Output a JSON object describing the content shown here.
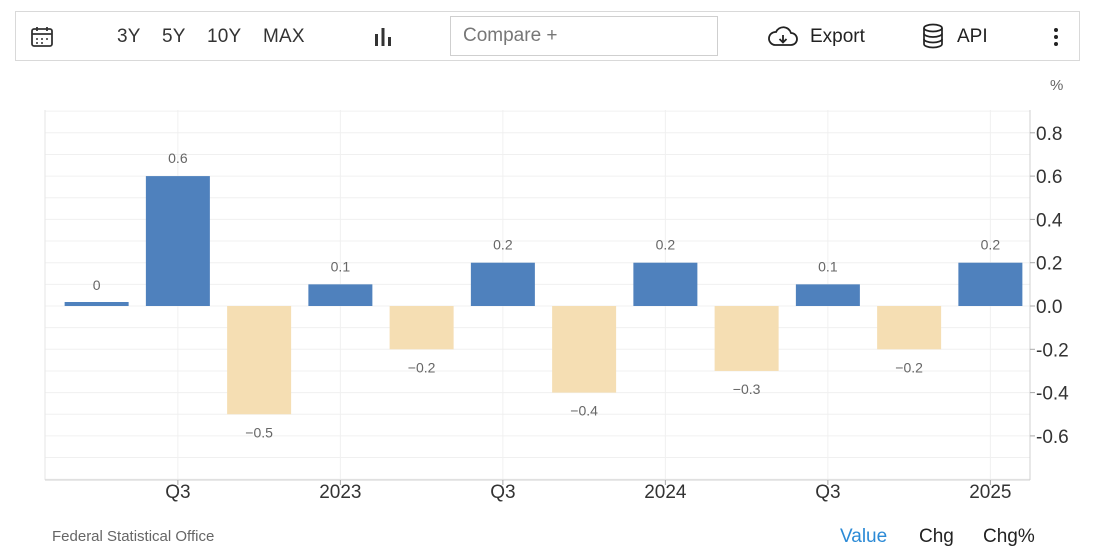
{
  "toolbar": {
    "calendar_icon": "calendar-icon",
    "ranges": [
      "3Y",
      "5Y",
      "10Y",
      "MAX"
    ],
    "chart_type_icon": "bar-chart-icon",
    "compare_placeholder": "Compare +",
    "export_label": "Export",
    "export_icon": "cloud-download-icon",
    "api_label": "API",
    "api_icon": "database-icon",
    "more_icon": "more-vertical-icon"
  },
  "unit_label": "%",
  "source": "Federal Statistical Office",
  "view_options": {
    "value": "Value",
    "chg": "Chg",
    "chg_pct": "Chg%",
    "active": "Value"
  },
  "colors": {
    "positive": "#4f81bd",
    "negative": "#f5deb3",
    "active_view": "#2b8ad6"
  },
  "chart_data": {
    "type": "bar",
    "categories": [
      "",
      "Q3",
      "",
      "2023",
      "",
      "Q3",
      "",
      "2024",
      "",
      "Q3",
      "",
      "2025"
    ],
    "values": [
      0,
      0.6,
      -0.5,
      0.1,
      -0.2,
      0.2,
      -0.4,
      0.2,
      -0.3,
      0.1,
      -0.2,
      0.2
    ],
    "value_labels": [
      "0",
      "0.6",
      "−0.5",
      "0.1",
      "−0.2",
      "0.2",
      "−0.4",
      "0.2",
      "−0.3",
      "0.1",
      "−0.2",
      "0.2"
    ],
    "y_ticks": [
      "0.8",
      "0.6",
      "0.4",
      "0.2",
      "0.0",
      "-0.2",
      "-0.4",
      "-0.6"
    ],
    "y_tick_values": [
      0.8,
      0.6,
      0.4,
      0.2,
      0.0,
      -0.2,
      -0.4,
      -0.6
    ],
    "ylim": [
      -0.8,
      0.9
    ],
    "grid": true,
    "y_axis_position": "right"
  }
}
